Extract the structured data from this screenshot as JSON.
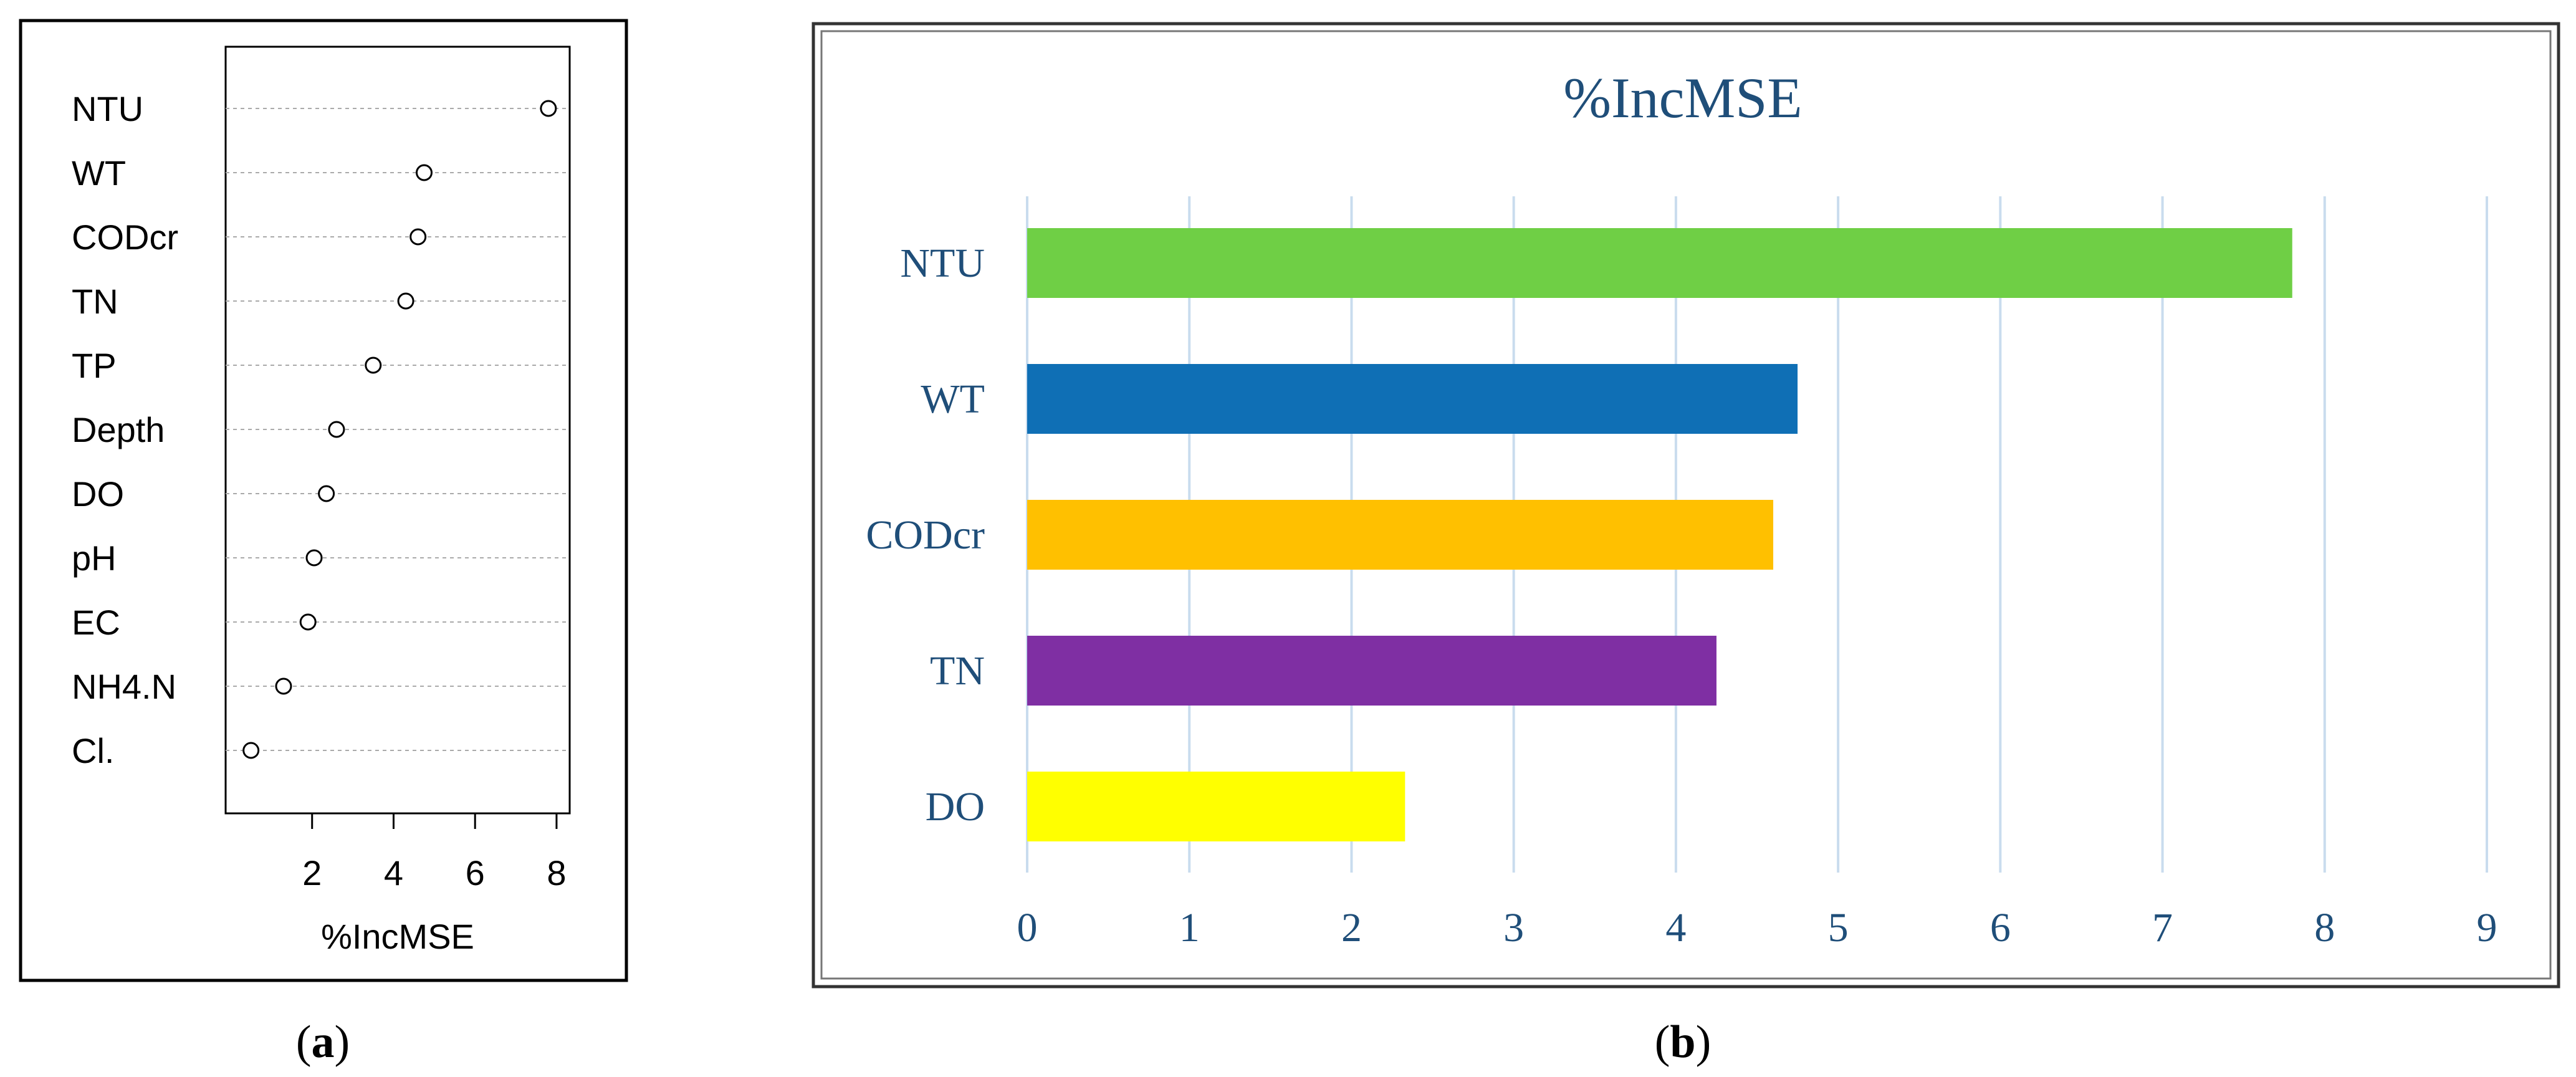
{
  "panel_a": {
    "caption_letter": "a",
    "chart_data": {
      "type": "scatter",
      "xlabel": "%IncMSE",
      "xlim": [
        0,
        8.2
      ],
      "xticks": [
        2,
        4,
        6,
        8
      ],
      "categories": [
        "NTU",
        "WT",
        "CODcr",
        "TN",
        "TP",
        "Depth",
        "DO",
        "pH",
        "EC",
        "NH4.N",
        "Cl."
      ],
      "values": [
        7.8,
        4.75,
        4.6,
        4.3,
        3.5,
        2.6,
        2.35,
        2.05,
        1.9,
        1.3,
        0.5
      ],
      "grid": "dotted-horizontal"
    }
  },
  "panel_b": {
    "caption_letter": "b",
    "chart_data": {
      "type": "bar",
      "orientation": "horizontal",
      "title": "%IncMSE",
      "categories": [
        "NTU",
        "WT",
        "CODcr",
        "TN",
        "DO"
      ],
      "values": [
        7.8,
        4.75,
        4.6,
        4.25,
        2.33
      ],
      "colors": [
        "#6fcf45",
        "#0f6fb5",
        "#ffc000",
        "#7f2fa3",
        "#ffff00"
      ],
      "xlim": [
        0,
        9
      ],
      "xticks": [
        0,
        1,
        2,
        3,
        4,
        5,
        6,
        7,
        8,
        9
      ],
      "grid": "vertical",
      "text_color": "#1f4e79",
      "grid_color": "#c9dcee"
    }
  }
}
